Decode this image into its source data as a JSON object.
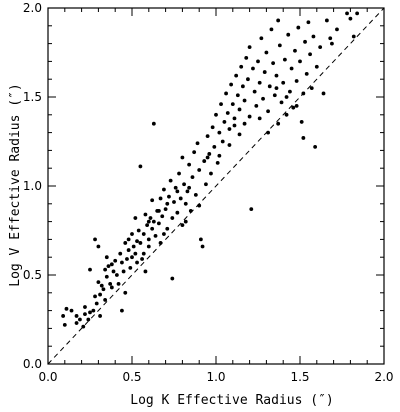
{
  "chart_data": {
    "type": "scatter",
    "title": "",
    "xlabel": "Log K Effective Radius (″)",
    "ylabel": "Log V Effective Radius (″)",
    "xlim": [
      0.0,
      2.0
    ],
    "ylim": [
      0.0,
      2.0
    ],
    "x_ticks": [
      "0.0",
      "0.5",
      "1.0",
      "1.5",
      "2.0"
    ],
    "y_ticks": [
      "0.0",
      "0.5",
      "1.0",
      "1.5",
      "2.0"
    ],
    "grid": false,
    "legend": "none",
    "marker_color": "#000000",
    "reference_line": {
      "style": "dashed",
      "x": [
        0.0,
        2.0
      ],
      "y": [
        0.0,
        2.0
      ]
    },
    "series": [
      {
        "points": [
          [
            0.09,
            0.27
          ],
          [
            0.1,
            0.22
          ],
          [
            0.11,
            0.31
          ],
          [
            0.14,
            0.3
          ],
          [
            0.17,
            0.27
          ],
          [
            0.19,
            0.25
          ],
          [
            0.21,
            0.21
          ],
          [
            0.22,
            0.28
          ],
          [
            0.24,
            0.25
          ],
          [
            0.25,
            0.29
          ],
          [
            0.25,
            0.53
          ],
          [
            0.27,
            0.3
          ],
          [
            0.28,
            0.38
          ],
          [
            0.28,
            0.7
          ],
          [
            0.29,
            0.34
          ],
          [
            0.3,
            0.46
          ],
          [
            0.3,
            0.66
          ],
          [
            0.31,
            0.27
          ],
          [
            0.32,
            0.44
          ],
          [
            0.33,
            0.42
          ],
          [
            0.34,
            0.36
          ],
          [
            0.34,
            0.53
          ],
          [
            0.35,
            0.49
          ],
          [
            0.36,
            0.55
          ],
          [
            0.37,
            0.45
          ],
          [
            0.38,
            0.56
          ],
          [
            0.39,
            0.52
          ],
          [
            0.4,
            0.58
          ],
          [
            0.41,
            0.5
          ],
          [
            0.42,
            0.45
          ],
          [
            0.43,
            0.62
          ],
          [
            0.44,
            0.57
          ],
          [
            0.45,
            0.52
          ],
          [
            0.46,
            0.4
          ],
          [
            0.46,
            0.68
          ],
          [
            0.47,
            0.59
          ],
          [
            0.48,
            0.64
          ],
          [
            0.49,
            0.54
          ],
          [
            0.5,
            0.6
          ],
          [
            0.5,
            0.73
          ],
          [
            0.51,
            0.66
          ],
          [
            0.52,
            0.62
          ],
          [
            0.53,
            0.57
          ],
          [
            0.53,
            0.69
          ],
          [
            0.54,
            0.75
          ],
          [
            0.55,
            0.68
          ],
          [
            0.55,
            1.11
          ],
          [
            0.56,
            0.59
          ],
          [
            0.57,
            0.73
          ],
          [
            0.58,
            0.84
          ],
          [
            0.58,
            0.52
          ],
          [
            0.59,
            0.78
          ],
          [
            0.6,
            0.7
          ],
          [
            0.6,
            0.66
          ],
          [
            0.61,
            0.82
          ],
          [
            0.62,
            0.76
          ],
          [
            0.62,
            0.92
          ],
          [
            0.63,
            0.8
          ],
          [
            0.63,
            1.35
          ],
          [
            0.64,
            0.72
          ],
          [
            0.65,
            0.86
          ],
          [
            0.66,
            0.79
          ],
          [
            0.67,
            0.93
          ],
          [
            0.67,
            0.68
          ],
          [
            0.68,
            0.83
          ],
          [
            0.69,
            0.98
          ],
          [
            0.7,
            0.87
          ],
          [
            0.71,
            0.76
          ],
          [
            0.72,
            0.94
          ],
          [
            0.73,
            1.03
          ],
          [
            0.74,
            0.82
          ],
          [
            0.74,
            0.48
          ],
          [
            0.75,
            0.91
          ],
          [
            0.76,
            0.99
          ],
          [
            0.77,
            0.85
          ],
          [
            0.78,
            1.07
          ],
          [
            0.79,
            0.93
          ],
          [
            0.8,
            0.78
          ],
          [
            0.8,
            1.16
          ],
          [
            0.81,
            1.01
          ],
          [
            0.82,
            0.9
          ],
          [
            0.83,
            0.97
          ],
          [
            0.84,
            1.12
          ],
          [
            0.85,
            0.86
          ],
          [
            0.86,
            1.05
          ],
          [
            0.87,
            1.19
          ],
          [
            0.88,
            0.95
          ],
          [
            0.89,
            1.24
          ],
          [
            0.9,
            1.09
          ],
          [
            0.91,
            0.7
          ],
          [
            0.92,
            0.66
          ],
          [
            0.93,
            1.14
          ],
          [
            0.94,
            1.01
          ],
          [
            0.95,
            1.28
          ],
          [
            0.96,
            1.18
          ],
          [
            0.97,
            1.07
          ],
          [
            0.98,
            1.33
          ],
          [
            0.99,
            1.22
          ],
          [
            1.0,
            1.4
          ],
          [
            1.01,
            1.13
          ],
          [
            1.02,
            1.3
          ],
          [
            1.03,
            1.46
          ],
          [
            1.04,
            1.25
          ],
          [
            1.05,
            1.36
          ],
          [
            1.06,
            1.52
          ],
          [
            1.07,
            1.41
          ],
          [
            1.08,
            1.32
          ],
          [
            1.09,
            1.57
          ],
          [
            1.1,
            1.46
          ],
          [
            1.11,
            1.38
          ],
          [
            1.12,
            1.62
          ],
          [
            1.13,
            1.51
          ],
          [
            1.14,
            1.43
          ],
          [
            1.15,
            1.67
          ],
          [
            1.16,
            1.56
          ],
          [
            1.17,
            1.48
          ],
          [
            1.18,
            1.72
          ],
          [
            1.19,
            1.6
          ],
          [
            1.2,
            1.39
          ],
          [
            1.2,
            1.78
          ],
          [
            1.22,
            1.66
          ],
          [
            1.23,
            1.53
          ],
          [
            1.24,
            1.45
          ],
          [
            1.25,
            1.7
          ],
          [
            1.26,
            1.58
          ],
          [
            1.27,
            1.83
          ],
          [
            1.28,
            1.49
          ],
          [
            1.29,
            1.64
          ],
          [
            1.3,
            1.75
          ],
          [
            1.31,
            1.42
          ],
          [
            1.32,
            1.56
          ],
          [
            1.33,
            1.88
          ],
          [
            1.34,
            1.69
          ],
          [
            1.35,
            1.51
          ],
          [
            1.36,
            1.62
          ],
          [
            1.37,
            1.93
          ],
          [
            1.38,
            1.79
          ],
          [
            1.39,
            1.47
          ],
          [
            1.4,
            1.58
          ],
          [
            1.41,
            1.71
          ],
          [
            1.42,
            1.4
          ],
          [
            1.43,
            1.85
          ],
          [
            1.44,
            1.53
          ],
          [
            1.45,
            1.66
          ],
          [
            1.46,
            1.44
          ],
          [
            1.47,
            1.76
          ],
          [
            1.48,
            1.59
          ],
          [
            1.49,
            1.89
          ],
          [
            1.5,
            1.7
          ],
          [
            1.51,
            1.36
          ],
          [
            1.52,
            1.27
          ],
          [
            1.53,
            1.81
          ],
          [
            1.54,
            1.63
          ],
          [
            1.55,
            1.92
          ],
          [
            1.56,
            1.74
          ],
          [
            1.57,
            1.55
          ],
          [
            1.58,
            1.84
          ],
          [
            1.59,
            1.22
          ],
          [
            1.6,
            1.67
          ],
          [
            1.62,
            1.78
          ],
          [
            1.64,
            1.52
          ],
          [
            1.66,
            1.93
          ],
          [
            1.68,
            1.83
          ],
          [
            1.69,
            1.8
          ],
          [
            1.72,
            1.88
          ],
          [
            1.78,
            1.97
          ],
          [
            1.8,
            1.94
          ],
          [
            1.82,
            1.84
          ],
          [
            1.84,
            1.97
          ],
          [
            1.21,
            0.87
          ],
          [
            0.44,
            0.3
          ],
          [
            0.38,
            0.43
          ],
          [
            0.52,
            0.82
          ],
          [
            0.66,
            0.86
          ],
          [
            0.77,
            0.97
          ],
          [
            0.9,
            0.89
          ],
          [
            1.02,
            1.17
          ],
          [
            1.08,
            1.23
          ],
          [
            1.14,
            1.29
          ],
          [
            1.17,
            1.35
          ],
          [
            1.26,
            1.38
          ],
          [
            1.31,
            1.3
          ],
          [
            1.37,
            1.35
          ],
          [
            1.42,
            1.5
          ],
          [
            1.48,
            1.45
          ],
          [
            1.52,
            1.52
          ],
          [
            1.36,
            1.55
          ],
          [
            1.11,
            1.34
          ],
          [
            0.95,
            1.16
          ],
          [
            0.84,
            0.99
          ],
          [
            0.71,
            0.9
          ],
          [
            0.6,
            0.8
          ],
          [
            0.48,
            0.7
          ],
          [
            0.35,
            0.6
          ],
          [
            0.31,
            0.39
          ],
          [
            0.22,
            0.32
          ],
          [
            0.17,
            0.23
          ],
          [
            0.57,
            0.62
          ],
          [
            0.69,
            0.73
          ],
          [
            0.82,
            0.8
          ]
        ]
      }
    ]
  }
}
